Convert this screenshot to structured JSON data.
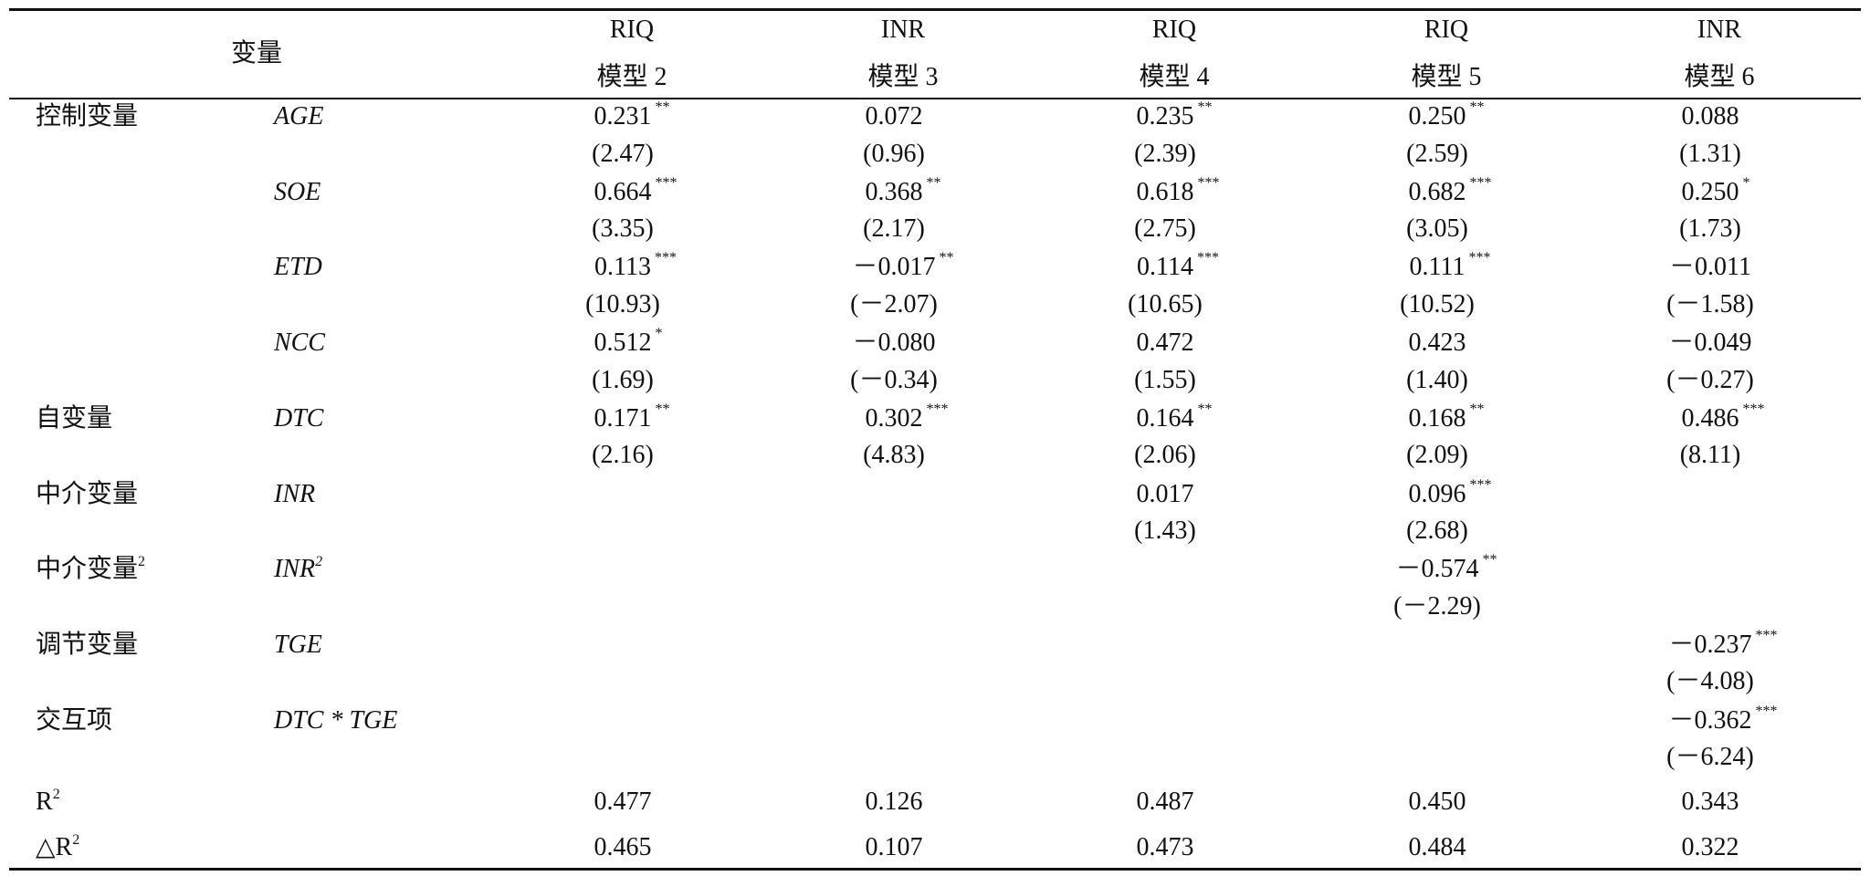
{
  "header": {
    "variable": "变量",
    "columns": [
      {
        "dependent": "RIQ",
        "model": "模型 2"
      },
      {
        "dependent": "INR",
        "model": "模型 3"
      },
      {
        "dependent": "RIQ",
        "model": "模型 4"
      },
      {
        "dependent": "RIQ",
        "model": "模型 5"
      },
      {
        "dependent": "INR",
        "model": "模型 6"
      }
    ]
  },
  "rows": [
    {
      "group": "控制变量",
      "var": "AGE",
      "cells": [
        {
          "coef": "0.231",
          "stars": "**",
          "t": "(2.47)"
        },
        {
          "coef": "0.072",
          "t": "(0.96)"
        },
        {
          "coef": "0.235",
          "stars": "**",
          "t": "(2.39)"
        },
        {
          "coef": "0.250",
          "stars": "**",
          "t": "(2.59)"
        },
        {
          "coef": "0.088",
          "t": "(1.31)"
        }
      ]
    },
    {
      "var": "SOE",
      "cells": [
        {
          "coef": "0.664",
          "stars": "***",
          "t": "(3.35)"
        },
        {
          "coef": "0.368",
          "stars": "**",
          "t": "(2.17)"
        },
        {
          "coef": "0.618",
          "stars": "***",
          "t": "(2.75)"
        },
        {
          "coef": "0.682",
          "stars": "***",
          "t": "(3.05)"
        },
        {
          "coef": "0.250",
          "stars": "*",
          "t": "(1.73)"
        }
      ]
    },
    {
      "var": "ETD",
      "cells": [
        {
          "coef": "0.113",
          "stars": "***",
          "t": "(10.93)"
        },
        {
          "coef": "－0.017",
          "stars": "**",
          "t": "(－2.07)"
        },
        {
          "coef": "0.114",
          "stars": "***",
          "t": "(10.65)"
        },
        {
          "coef": "0.111",
          "stars": "***",
          "t": "(10.52)"
        },
        {
          "coef": "－0.011",
          "t": "(－1.58)"
        }
      ]
    },
    {
      "var": "NCC",
      "cells": [
        {
          "coef": "0.512",
          "stars": "*",
          "t": "(1.69)"
        },
        {
          "coef": "－0.080",
          "t": "(－0.34)"
        },
        {
          "coef": "0.472",
          "t": "(1.55)"
        },
        {
          "coef": "0.423",
          "t": "(1.40)"
        },
        {
          "coef": "－0.049",
          "t": "(－0.27)"
        }
      ]
    },
    {
      "group": "自变量",
      "var": "DTC",
      "cells": [
        {
          "coef": "0.171",
          "stars": "**",
          "t": "(2.16)"
        },
        {
          "coef": "0.302",
          "stars": "***",
          "t": "(4.83)"
        },
        {
          "coef": "0.164",
          "stars": "**",
          "t": "(2.06)"
        },
        {
          "coef": "0.168",
          "stars": "**",
          "t": "(2.09)"
        },
        {
          "coef": "0.486",
          "stars": "***",
          "t": "(8.11)"
        }
      ]
    },
    {
      "group": "中介变量",
      "var": "INR",
      "cells": [
        null,
        null,
        {
          "coef": "0.017",
          "t": "(1.43)"
        },
        {
          "coef": "0.096",
          "stars": "***",
          "t": "(2.68)"
        },
        null
      ]
    },
    {
      "group": "中介变量",
      "group_sup": "2",
      "var": "INR",
      "var_sup": "2",
      "cells": [
        null,
        null,
        null,
        {
          "coef": "－0.574",
          "stars": "**",
          "t": "(－2.29)"
        },
        null
      ]
    },
    {
      "group": "调节变量",
      "var": "TGE",
      "cells": [
        null,
        null,
        null,
        null,
        {
          "coef": "－0.237",
          "stars": "***",
          "t": "(－4.08)"
        }
      ]
    },
    {
      "group": "交互项",
      "var": "DTC * TGE",
      "cells": [
        null,
        null,
        null,
        null,
        {
          "coef": "－0.362",
          "stars": "***",
          "t": "(－6.24)"
        }
      ]
    }
  ],
  "stats": [
    {
      "label": "R",
      "label_sup": "2",
      "values": [
        "0.477",
        "0.126",
        "0.487",
        "0.450",
        "0.343"
      ]
    },
    {
      "label": "△R",
      "label_sup": "2",
      "values": [
        "0.465",
        "0.107",
        "0.473",
        "0.484",
        "0.322"
      ]
    }
  ]
}
